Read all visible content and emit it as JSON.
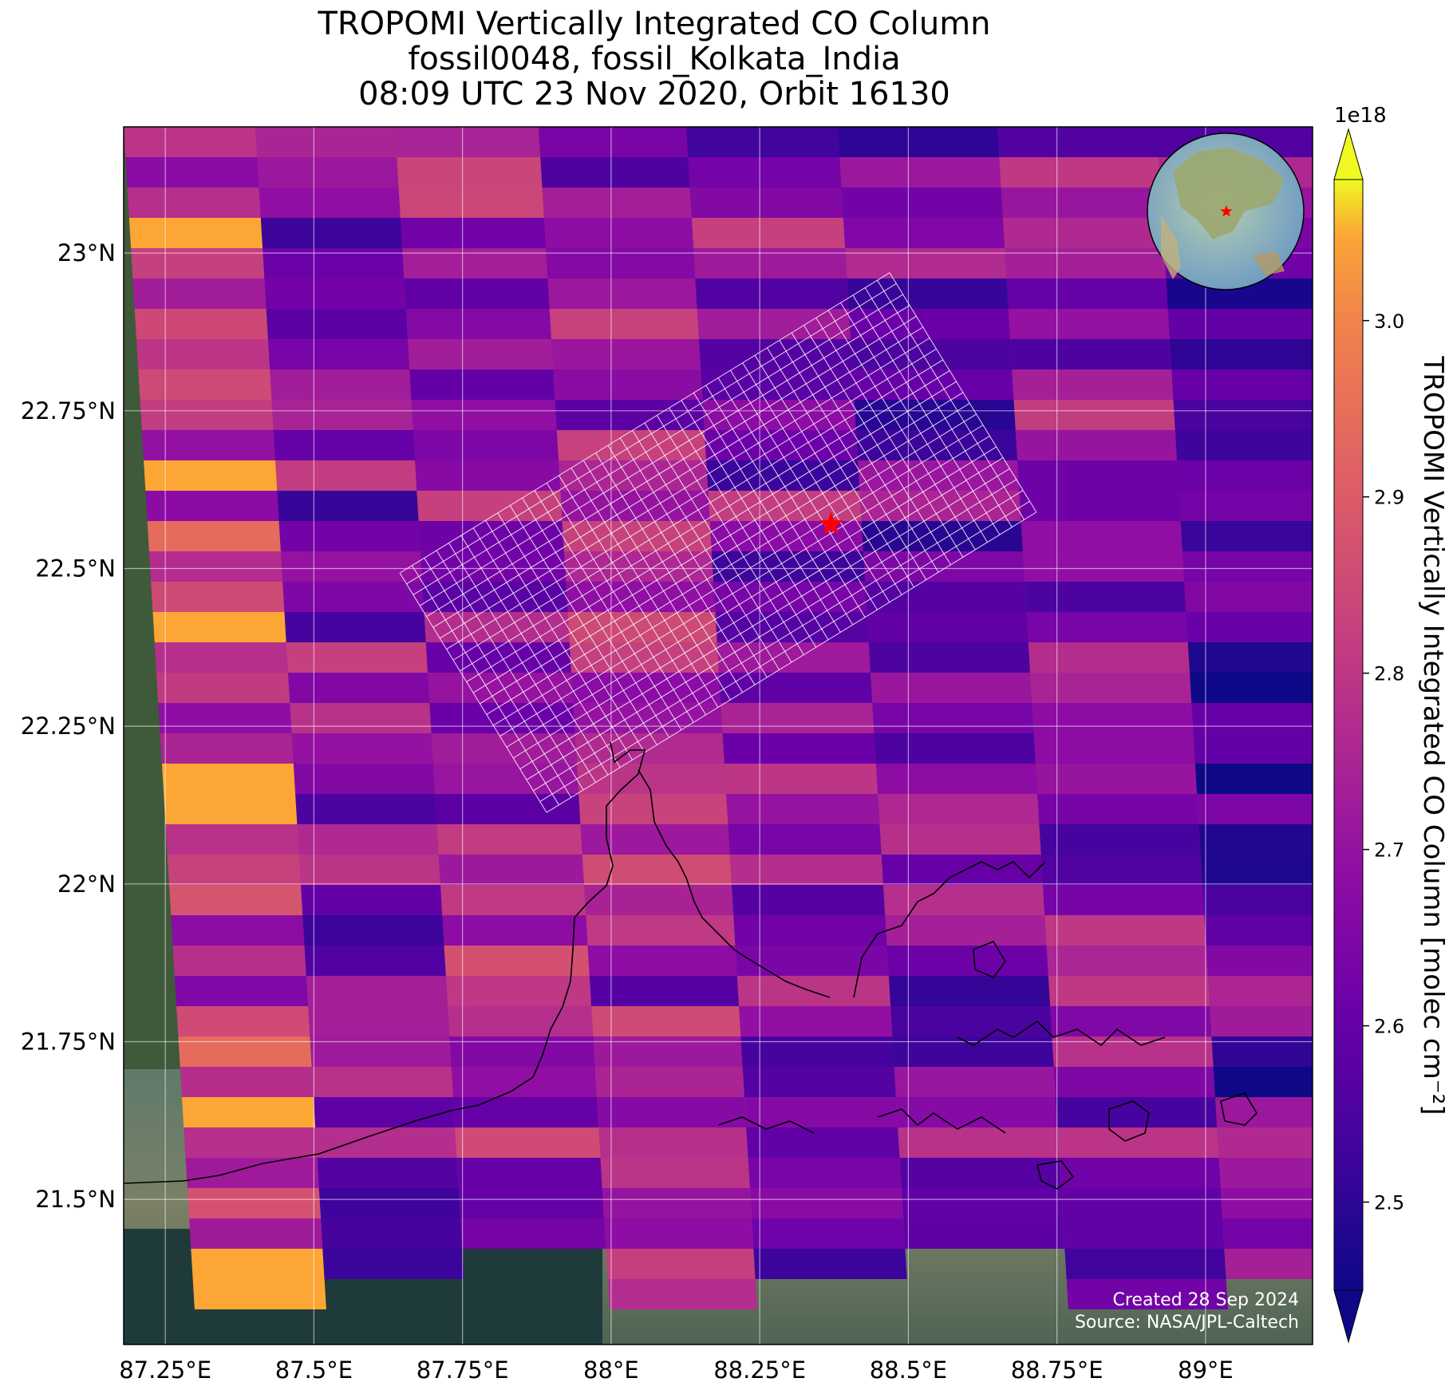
{
  "title": {
    "line1": "TROPOMI Vertically Integrated CO Column",
    "line2": "fossil0048, fossil_Kolkata_India",
    "line3": "08:09 UTC 23 Nov 2020, Orbit 16130"
  },
  "axes": {
    "x_ticks": [
      "87.25°E",
      "87.5°E",
      "87.75°E",
      "88°E",
      "88.25°E",
      "88.5°E",
      "88.75°E",
      "89°E"
    ],
    "y_ticks": [
      "23°N",
      "22.75°N",
      "22.5°N",
      "22.25°N",
      "22°N",
      "21.75°N",
      "21.5°N"
    ]
  },
  "colorbar": {
    "label": "TROPOMI Vertically Integrated CO Column [molec cm⁻²]",
    "exponent": "1e18",
    "ticks": [
      "2.5",
      "2.6",
      "2.7",
      "2.8",
      "2.9",
      "3.0"
    ],
    "range": [
      2.45,
      3.08
    ],
    "colormap": "plasma",
    "extend": "both"
  },
  "target": {
    "lon": 88.37,
    "lat": 22.57,
    "marker": "red-star",
    "color": "#ff0000"
  },
  "map_extent": {
    "lon": [
      87.18,
      89.18
    ],
    "lat": [
      21.27,
      23.2
    ]
  },
  "credits": {
    "created": "Created 28 Sep 2024",
    "source": "Source: NASA/JPL-Caltech"
  },
  "inset": {
    "description_icon": "globe-icon"
  }
}
